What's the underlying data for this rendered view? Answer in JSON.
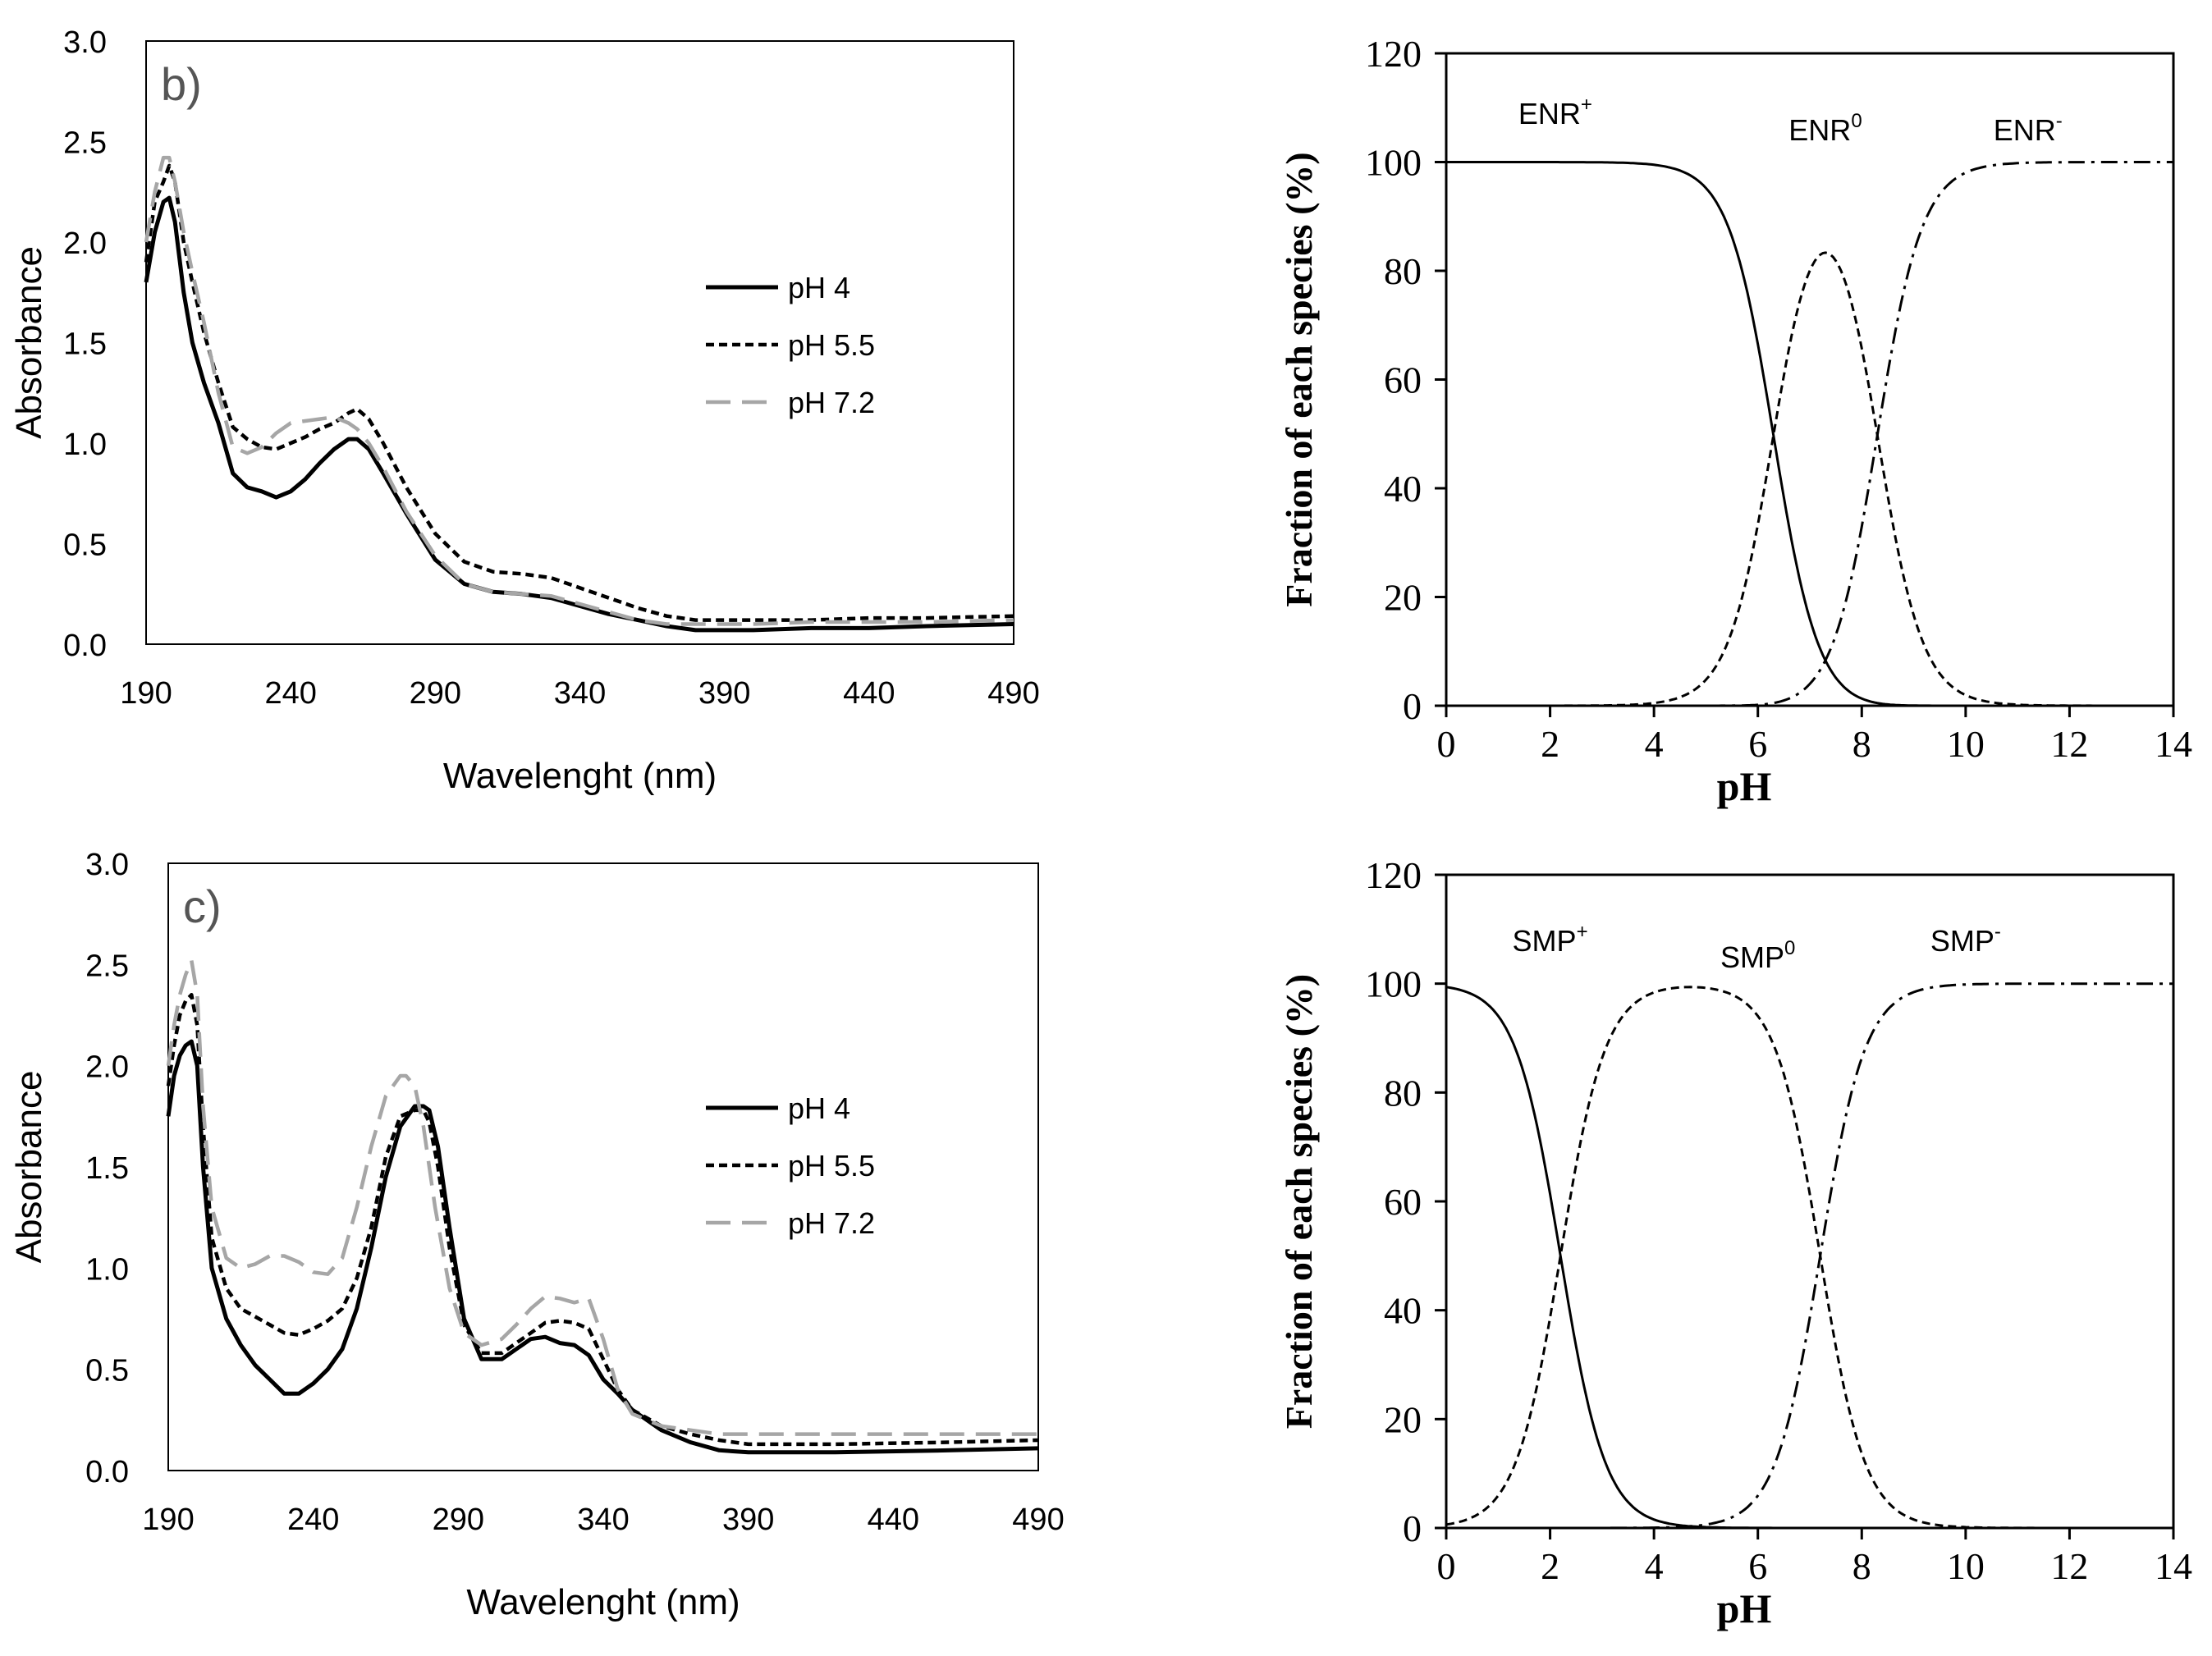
{
  "chart_data": [
    {
      "id": "uv_b",
      "type": "line",
      "panel_label": "b)",
      "xlabel": "Wavelenght (nm)",
      "ylabel": "Absorbance",
      "xlim": [
        190,
        490
      ],
      "ylim": [
        0,
        3.0
      ],
      "xticks": [
        "190",
        "240",
        "290",
        "340",
        "390",
        "440",
        "490"
      ],
      "yticks": [
        "0.0",
        "0.5",
        "1.0",
        "1.5",
        "2.0",
        "2.5",
        "3.0"
      ],
      "legend_position": "center-right",
      "series": [
        {
          "name": "pH 4",
          "color": "#000000",
          "style": "solid",
          "x": [
            190,
            193,
            196,
            198,
            200,
            203,
            206,
            210,
            215,
            220,
            225,
            230,
            235,
            240,
            245,
            250,
            255,
            260,
            263,
            267,
            272,
            280,
            290,
            300,
            310,
            320,
            330,
            340,
            350,
            360,
            370,
            380,
            390,
            400,
            420,
            440,
            460,
            490
          ],
          "y": [
            1.8,
            2.05,
            2.2,
            2.22,
            2.1,
            1.75,
            1.5,
            1.3,
            1.1,
            0.85,
            0.78,
            0.76,
            0.73,
            0.76,
            0.82,
            0.9,
            0.97,
            1.02,
            1.02,
            0.97,
            0.85,
            0.65,
            0.42,
            0.3,
            0.26,
            0.25,
            0.23,
            0.19,
            0.15,
            0.12,
            0.09,
            0.07,
            0.07,
            0.07,
            0.08,
            0.08,
            0.09,
            0.1
          ]
        },
        {
          "name": "pH 5.5",
          "color": "#000000",
          "style": "dotted",
          "x": [
            190,
            193,
            196,
            198,
            200,
            203,
            206,
            210,
            215,
            220,
            225,
            230,
            235,
            240,
            245,
            250,
            255,
            260,
            263,
            267,
            272,
            280,
            290,
            300,
            310,
            320,
            330,
            340,
            350,
            360,
            370,
            380,
            390,
            400,
            420,
            440,
            460,
            490
          ],
          "y": [
            1.9,
            2.2,
            2.3,
            2.38,
            2.3,
            2.0,
            1.8,
            1.55,
            1.3,
            1.08,
            1.02,
            0.98,
            0.97,
            1.0,
            1.03,
            1.07,
            1.1,
            1.15,
            1.17,
            1.12,
            1.0,
            0.78,
            0.55,
            0.41,
            0.36,
            0.35,
            0.33,
            0.28,
            0.23,
            0.18,
            0.14,
            0.12,
            0.12,
            0.12,
            0.12,
            0.13,
            0.13,
            0.14
          ]
        },
        {
          "name": "pH 7.2",
          "color": "#a6a6a6",
          "style": "dashed",
          "x": [
            190,
            193,
            196,
            198,
            200,
            203,
            206,
            210,
            215,
            220,
            225,
            230,
            235,
            240,
            245,
            250,
            255,
            260,
            263,
            267,
            272,
            280,
            290,
            300,
            310,
            320,
            330,
            340,
            350,
            360,
            370,
            380,
            390,
            400,
            420,
            440,
            460,
            490
          ],
          "y": [
            2.0,
            2.25,
            2.42,
            2.42,
            2.3,
            2.05,
            1.85,
            1.6,
            1.25,
            0.98,
            0.95,
            0.98,
            1.05,
            1.1,
            1.11,
            1.12,
            1.13,
            1.1,
            1.07,
            1.0,
            0.88,
            0.66,
            0.44,
            0.3,
            0.26,
            0.25,
            0.24,
            0.2,
            0.16,
            0.12,
            0.1,
            0.1,
            0.1,
            0.1,
            0.11,
            0.11,
            0.11,
            0.12
          ]
        }
      ]
    },
    {
      "id": "uv_c",
      "type": "line",
      "panel_label": "c)",
      "xlabel": "Wavelenght (nm)",
      "ylabel": "Absorbance",
      "xlim": [
        190,
        490
      ],
      "ylim": [
        0,
        3.0
      ],
      "xticks": [
        "190",
        "240",
        "290",
        "340",
        "390",
        "440",
        "490"
      ],
      "yticks": [
        "0.0",
        "0.5",
        "1.0",
        "1.5",
        "2.0",
        "2.5",
        "3.0"
      ],
      "legend_position": "center-right",
      "series": [
        {
          "name": "pH 4",
          "color": "#000000",
          "style": "solid",
          "x": [
            190,
            192,
            194,
            196,
            198,
            200,
            202,
            205,
            210,
            215,
            220,
            225,
            230,
            235,
            240,
            245,
            250,
            255,
            260,
            265,
            270,
            275,
            278,
            280,
            283,
            287,
            292,
            298,
            305,
            310,
            315,
            320,
            325,
            330,
            335,
            340,
            345,
            350,
            360,
            370,
            380,
            390,
            420,
            460,
            490
          ],
          "y": [
            1.75,
            1.95,
            2.05,
            2.1,
            2.12,
            2.0,
            1.5,
            1.0,
            0.75,
            0.62,
            0.52,
            0.45,
            0.38,
            0.38,
            0.43,
            0.5,
            0.6,
            0.8,
            1.1,
            1.45,
            1.7,
            1.8,
            1.8,
            1.78,
            1.6,
            1.2,
            0.75,
            0.55,
            0.55,
            0.6,
            0.65,
            0.66,
            0.63,
            0.62,
            0.57,
            0.45,
            0.38,
            0.3,
            0.2,
            0.14,
            0.1,
            0.09,
            0.09,
            0.1,
            0.11
          ]
        },
        {
          "name": "pH 5.5",
          "color": "#000000",
          "style": "dotted",
          "x": [
            190,
            192,
            194,
            196,
            198,
            200,
            202,
            205,
            210,
            215,
            220,
            225,
            230,
            235,
            240,
            245,
            250,
            255,
            260,
            265,
            270,
            275,
            278,
            280,
            283,
            287,
            292,
            298,
            305,
            310,
            315,
            320,
            325,
            330,
            335,
            340,
            345,
            350,
            360,
            370,
            380,
            390,
            420,
            460,
            490
          ],
          "y": [
            1.9,
            2.1,
            2.25,
            2.32,
            2.35,
            2.2,
            1.7,
            1.15,
            0.9,
            0.8,
            0.76,
            0.72,
            0.68,
            0.67,
            0.7,
            0.74,
            0.8,
            0.95,
            1.2,
            1.55,
            1.75,
            1.78,
            1.78,
            1.72,
            1.5,
            1.1,
            0.72,
            0.58,
            0.58,
            0.63,
            0.68,
            0.73,
            0.74,
            0.73,
            0.7,
            0.55,
            0.4,
            0.3,
            0.22,
            0.18,
            0.15,
            0.13,
            0.13,
            0.14,
            0.15
          ]
        },
        {
          "name": "pH 7.2",
          "color": "#a6a6a6",
          "style": "dashed",
          "x": [
            190,
            192,
            194,
            196,
            198,
            200,
            202,
            205,
            210,
            215,
            220,
            225,
            230,
            235,
            240,
            245,
            250,
            255,
            260,
            265,
            270,
            272,
            275,
            278,
            282,
            287,
            292,
            298,
            305,
            310,
            315,
            320,
            325,
            330,
            335,
            340,
            345,
            350,
            360,
            370,
            380,
            390,
            420,
            460,
            490
          ],
          "y": [
            2.0,
            2.2,
            2.35,
            2.45,
            2.52,
            2.35,
            1.8,
            1.3,
            1.05,
            1.0,
            1.02,
            1.06,
            1.06,
            1.03,
            0.98,
            0.97,
            1.05,
            1.3,
            1.6,
            1.85,
            1.95,
            1.95,
            1.9,
            1.7,
            1.3,
            0.9,
            0.68,
            0.62,
            0.65,
            0.72,
            0.8,
            0.86,
            0.85,
            0.83,
            0.85,
            0.65,
            0.4,
            0.28,
            0.22,
            0.2,
            0.18,
            0.18,
            0.18,
            0.18,
            0.18
          ]
        }
      ]
    },
    {
      "id": "species_enr",
      "type": "line",
      "xlabel": "pH",
      "ylabel": "Fraction of each species (%)",
      "xlim": [
        0,
        14
      ],
      "ylim": [
        0,
        120
      ],
      "xticks": [
        "0",
        "2",
        "4",
        "6",
        "8",
        "10",
        "12",
        "14"
      ],
      "yticks": [
        "0",
        "20",
        "40",
        "60",
        "80",
        "100",
        "120"
      ],
      "pKa": [
        6.3,
        8.3
      ],
      "series": [
        {
          "name": "ENR+",
          "base": "ENR",
          "sup": "+",
          "style": "solid",
          "label_pos": [
            2.1,
            107
          ]
        },
        {
          "name": "ENR0",
          "base": "ENR",
          "sup": "0",
          "style": "dashed",
          "label_pos": [
            7.3,
            104
          ]
        },
        {
          "name": "ENR-",
          "base": "ENR",
          "sup": "-",
          "style": "dashdot",
          "label_pos": [
            11.2,
            104
          ]
        }
      ]
    },
    {
      "id": "species_smp",
      "type": "line",
      "xlabel": "pH",
      "ylabel": "Fraction of each species (%)",
      "xlim": [
        0,
        14
      ],
      "ylim": [
        0,
        120
      ],
      "xticks": [
        "0",
        "2",
        "4",
        "6",
        "8",
        "10",
        "12",
        "14"
      ],
      "yticks": [
        "0",
        "20",
        "40",
        "60",
        "80",
        "100",
        "120"
      ],
      "pKa": [
        2.2,
        7.2
      ],
      "series": [
        {
          "name": "SMP+",
          "base": "SMP",
          "sup": "+",
          "style": "solid",
          "label_pos": [
            2.0,
            106
          ]
        },
        {
          "name": "SMP0",
          "base": "SMP",
          "sup": "0",
          "style": "dashed",
          "label_pos": [
            6.0,
            103
          ]
        },
        {
          "name": "SMP-",
          "base": "SMP",
          "sup": "-",
          "style": "dashdot",
          "label_pos": [
            10.0,
            106
          ]
        }
      ]
    }
  ]
}
